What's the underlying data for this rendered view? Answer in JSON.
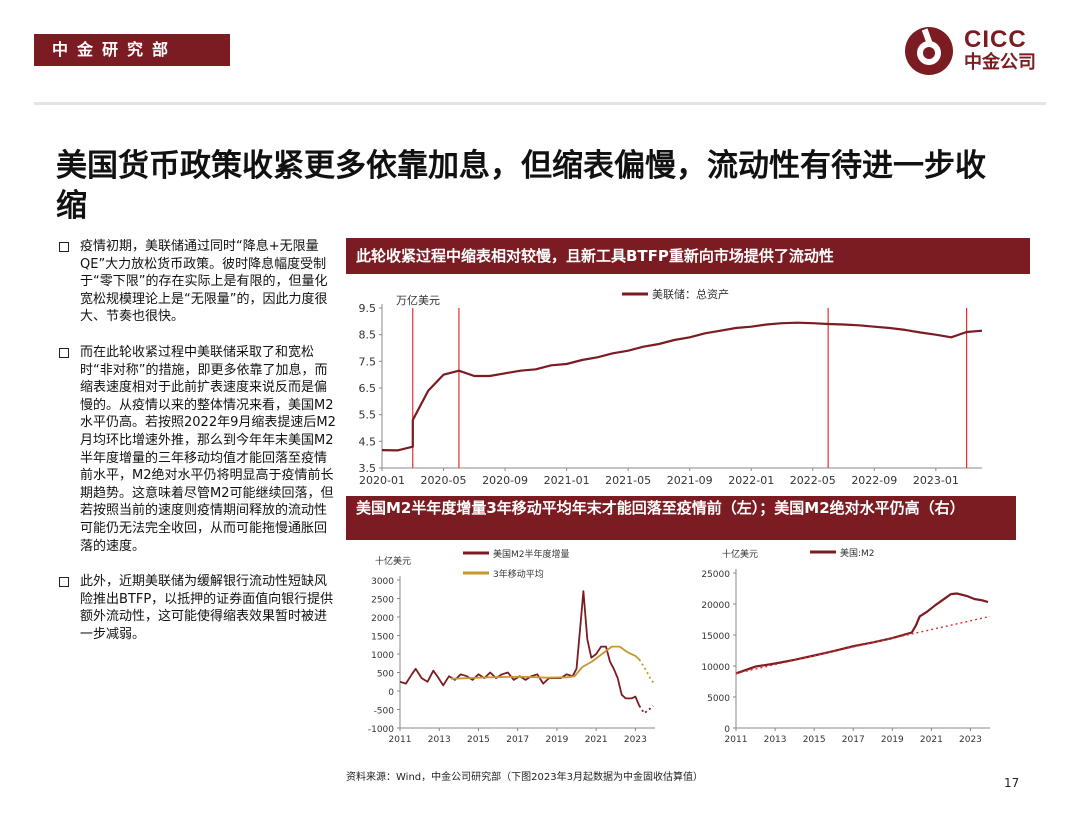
{
  "header": {
    "department": "中金研究部",
    "logo_en": "CICC",
    "logo_cn": "中金公司",
    "brand_color": "#7b1c22"
  },
  "title": "美国货币政策收紧更多依靠加息，但缩表偏慢，流动性有待进一步收缩",
  "bullets": [
    "疫情初期，美联储通过同时“降息+无限量QE”大力放松货币政策。彼时降息幅度受制于“零下限”的存在实际上是有限的，但量化宽松规模理论上是“无限量”的，因此力度很大、节奏也很快。",
    "而在此轮收紧过程中美联储采取了和宽松时“非对称”的措施，即更多依靠了加息，而缩表速度相对于此前扩表速度来说反而是偏慢的。从疫情以来的整体情况来看，美国M2水平仍高。若按照2022年9月缩表提速后M2月均环比增速外推，那么到今年年末美国M2半年度增量的三年移动均值才能回落至疫情前水平，M2绝对水平仍将明显高于疫情前长期趋势。这意味着尽管M2可能继续回落，但若按照当前的速度则疫情期间释放的流动性可能仍无法完全收回，从而可能拖慢通胀回落的速度。",
    "此外，近期美联储为缓解银行流动性短缺风险推出BTFP，以抵押的证券面值向银行提供额外流动性，这可能使得缩表效果暂时被进一步减弱。"
  ],
  "banner_top": "此轮收紧过程中缩表相对较慢，且新工具BTFP重新向市场提供了流动性",
  "banner_bottom": "美国M2半年度增量3年移动平均年末才能回落至疫情前（左）；美国M2绝对水平仍高（右）",
  "source": "资料来源：Wind，中金公司研究部（下图2023年3月起数据为中金固收估算值）",
  "page_number": "17",
  "chart_data": [
    {
      "type": "line",
      "title": "",
      "ylabel": "万亿美元",
      "ylim": [
        3.5,
        9.5
      ],
      "yticks": [
        "3.5",
        "4.5",
        "5.5",
        "6.5",
        "7.5",
        "8.5",
        "9.5"
      ],
      "xticks": [
        "2020-01",
        "2020-05",
        "2020-09",
        "2021-01",
        "2021-05",
        "2021-09",
        "2022-01",
        "2022-05",
        "2022-09",
        "2023-01"
      ],
      "xlim": [
        "2020-01",
        "2023-04"
      ],
      "legend_position": "top-center",
      "vlines": [
        "2020-03",
        "2020-06",
        "2022-06",
        "2023-03"
      ],
      "vline_color": "#e0302e",
      "series": [
        {
          "name": "美联储：总资产",
          "color": "#7b1c22",
          "points": [
            [
              "2020-01",
              4.17
            ],
            [
              "2020-02",
              4.16
            ],
            [
              "2020-03",
              4.3
            ],
            [
              "2020-03",
              5.3
            ],
            [
              "2020-04",
              6.4
            ],
            [
              "2020-05",
              7.0
            ],
            [
              "2020-06",
              7.15
            ],
            [
              "2020-07",
              6.95
            ],
            [
              "2020-08",
              6.95
            ],
            [
              "2020-09",
              7.05
            ],
            [
              "2020-10",
              7.15
            ],
            [
              "2020-11",
              7.2
            ],
            [
              "2020-12",
              7.35
            ],
            [
              "2021-01",
              7.4
            ],
            [
              "2021-02",
              7.55
            ],
            [
              "2021-03",
              7.65
            ],
            [
              "2021-04",
              7.8
            ],
            [
              "2021-05",
              7.9
            ],
            [
              "2021-06",
              8.05
            ],
            [
              "2021-07",
              8.15
            ],
            [
              "2021-08",
              8.3
            ],
            [
              "2021-09",
              8.4
            ],
            [
              "2021-10",
              8.55
            ],
            [
              "2021-11",
              8.65
            ],
            [
              "2021-12",
              8.75
            ],
            [
              "2022-01",
              8.8
            ],
            [
              "2022-02",
              8.88
            ],
            [
              "2022-03",
              8.93
            ],
            [
              "2022-04",
              8.95
            ],
            [
              "2022-05",
              8.93
            ],
            [
              "2022-06",
              8.9
            ],
            [
              "2022-07",
              8.88
            ],
            [
              "2022-08",
              8.85
            ],
            [
              "2022-09",
              8.8
            ],
            [
              "2022-10",
              8.75
            ],
            [
              "2022-11",
              8.68
            ],
            [
              "2022-12",
              8.58
            ],
            [
              "2023-01",
              8.5
            ],
            [
              "2023-02",
              8.4
            ],
            [
              "2023-03",
              8.6
            ],
            [
              "2023-04",
              8.65
            ]
          ]
        }
      ]
    },
    {
      "type": "line",
      "title": "",
      "ylabel": "十亿美元",
      "ylim": [
        -1000,
        3000
      ],
      "yticks": [
        "-1000",
        "-500",
        "0",
        "500",
        "1000",
        "1500",
        "2000",
        "2500",
        "3000"
      ],
      "xticks": [
        "2011",
        "2013",
        "2015",
        "2017",
        "2019",
        "2021",
        "2023"
      ],
      "xlim": [
        2011,
        2024
      ],
      "legend_position": "top-left",
      "series": [
        {
          "name": "美国M2半年度增量",
          "color": "#7b1c22",
          "estimate_from": 2023.2,
          "points": [
            [
              2011.0,
              250
            ],
            [
              2011.3,
              200
            ],
            [
              2011.6,
              450
            ],
            [
              2011.8,
              600
            ],
            [
              2012.1,
              350
            ],
            [
              2012.4,
              250
            ],
            [
              2012.7,
              550
            ],
            [
              2012.9,
              400
            ],
            [
              2013.2,
              150
            ],
            [
              2013.5,
              400
            ],
            [
              2013.8,
              300
            ],
            [
              2014.1,
              450
            ],
            [
              2014.4,
              400
            ],
            [
              2014.7,
              300
            ],
            [
              2015.0,
              450
            ],
            [
              2015.3,
              350
            ],
            [
              2015.6,
              500
            ],
            [
              2015.9,
              350
            ],
            [
              2016.2,
              450
            ],
            [
              2016.5,
              500
            ],
            [
              2016.8,
              300
            ],
            [
              2017.1,
              400
            ],
            [
              2017.4,
              300
            ],
            [
              2017.7,
              400
            ],
            [
              2018.0,
              450
            ],
            [
              2018.3,
              200
            ],
            [
              2018.6,
              350
            ],
            [
              2018.9,
              350
            ],
            [
              2019.2,
              350
            ],
            [
              2019.5,
              450
            ],
            [
              2019.8,
              400
            ],
            [
              2020.0,
              600
            ],
            [
              2020.2,
              1800
            ],
            [
              2020.35,
              2700
            ],
            [
              2020.55,
              1400
            ],
            [
              2020.75,
              900
            ],
            [
              2021.0,
              1000
            ],
            [
              2021.25,
              1200
            ],
            [
              2021.5,
              1200
            ],
            [
              2021.7,
              800
            ],
            [
              2021.9,
              600
            ],
            [
              2022.1,
              350
            ],
            [
              2022.3,
              -100
            ],
            [
              2022.5,
              -200
            ],
            [
              2022.8,
              -200
            ],
            [
              2023.0,
              -150
            ],
            [
              2023.2,
              -400
            ],
            [
              2023.45,
              -600
            ],
            [
              2023.7,
              -500
            ],
            [
              2023.9,
              -400
            ]
          ]
        },
        {
          "name": "3年移动平均",
          "color": "#c8962e",
          "estimate_from": 2023.2,
          "points": [
            [
              2013.6,
              330
            ],
            [
              2014.5,
              350
            ],
            [
              2015.5,
              370
            ],
            [
              2016.5,
              380
            ],
            [
              2017.5,
              380
            ],
            [
              2018.5,
              360
            ],
            [
              2019.5,
              370
            ],
            [
              2019.9,
              400
            ],
            [
              2020.3,
              650
            ],
            [
              2020.8,
              800
            ],
            [
              2021.3,
              1000
            ],
            [
              2021.8,
              1200
            ],
            [
              2022.2,
              1200
            ],
            [
              2022.6,
              1050
            ],
            [
              2023.0,
              950
            ],
            [
              2023.2,
              850
            ],
            [
              2023.5,
              600
            ],
            [
              2023.8,
              300
            ],
            [
              2024.0,
              180
            ]
          ]
        }
      ]
    },
    {
      "type": "line",
      "title": "",
      "ylabel": "十亿美元",
      "ylim": [
        0,
        25000
      ],
      "yticks": [
        "0",
        "5000",
        "10000",
        "15000",
        "20000",
        "25000"
      ],
      "xticks": [
        "2011",
        "2013",
        "2015",
        "2017",
        "2019",
        "2021",
        "2023"
      ],
      "xlim": [
        2011,
        2024
      ],
      "legend_position": "top-center",
      "series": [
        {
          "name": "美国:M2",
          "color": "#7b1c22",
          "points": [
            [
              2011.0,
              8800
            ],
            [
              2012.0,
              9900
            ],
            [
              2013.0,
              10400
            ],
            [
              2014.0,
              11000
            ],
            [
              2015.0,
              11700
            ],
            [
              2016.0,
              12400
            ],
            [
              2017.0,
              13200
            ],
            [
              2018.0,
              13800
            ],
            [
              2019.0,
              14500
            ],
            [
              2020.0,
              15400
            ],
            [
              2020.2,
              16500
            ],
            [
              2020.4,
              18000
            ],
            [
              2020.8,
              18800
            ],
            [
              2021.2,
              19800
            ],
            [
              2021.6,
              20700
            ],
            [
              2022.0,
              21600
            ],
            [
              2022.3,
              21700
            ],
            [
              2022.8,
              21300
            ],
            [
              2023.2,
              20800
            ],
            [
              2023.6,
              20600
            ],
            [
              2023.9,
              20300
            ]
          ]
        },
        {
          "name": "",
          "color": "#e0302e",
          "style": "dotted",
          "points": [
            [
              2011.0,
              8800
            ],
            [
              2024.0,
              18000
            ]
          ]
        }
      ]
    }
  ]
}
